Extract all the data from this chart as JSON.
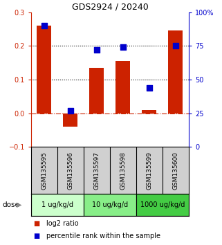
{
  "title": "GDS2924 / 20240",
  "samples": [
    "GSM135595",
    "GSM135596",
    "GSM135597",
    "GSM135598",
    "GSM135599",
    "GSM135600"
  ],
  "log2_ratio": [
    0.26,
    -0.04,
    0.135,
    0.155,
    0.01,
    0.245
  ],
  "percentile_rank": [
    90,
    27,
    72,
    74,
    44,
    75
  ],
  "bar_color": "#cc2200",
  "square_color": "#0000cc",
  "left_ylim": [
    -0.1,
    0.3
  ],
  "right_ylim": [
    0,
    100
  ],
  "left_yticks": [
    -0.1,
    0.0,
    0.1,
    0.2,
    0.3
  ],
  "right_yticks": [
    0,
    25,
    50,
    75,
    100
  ],
  "right_yticklabels": [
    "0",
    "25",
    "50",
    "75",
    "100%"
  ],
  "hlines_dotted": [
    0.1,
    0.2
  ],
  "hline_dashed_color": "#cc2200",
  "dose_groups": [
    {
      "label": "1 ug/kg/d",
      "samples": [
        0,
        1
      ],
      "color": "#ccffcc"
    },
    {
      "label": "10 ug/kg/d",
      "samples": [
        2,
        3
      ],
      "color": "#88ee88"
    },
    {
      "label": "1000 ug/kg/d",
      "samples": [
        4,
        5
      ],
      "color": "#44cc44"
    }
  ],
  "dose_label": "dose",
  "legend_log2": "log2 ratio",
  "legend_pct": "percentile rank within the sample",
  "bar_width": 0.55,
  "background_color": "#ffffff",
  "sample_bg": "#d0d0d0",
  "title_fontsize": 9
}
